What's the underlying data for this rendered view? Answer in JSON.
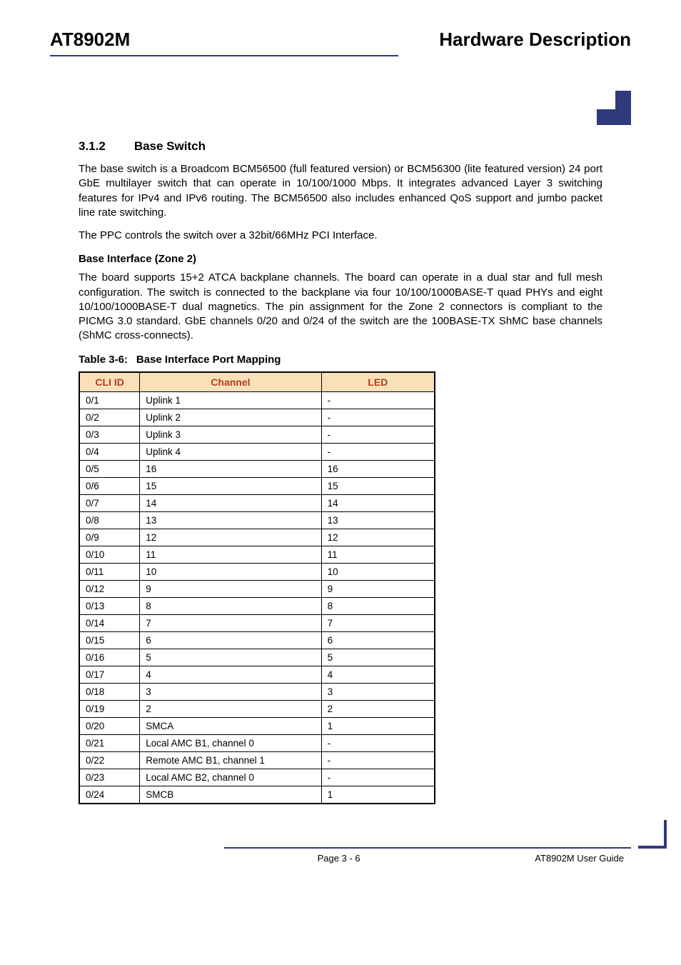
{
  "header": {
    "left": "AT8902M",
    "right": "Hardware Description"
  },
  "logo": {
    "bg_color": "#2e3a7a",
    "accent_color": "#ffffff"
  },
  "section": {
    "number": "3.1.2",
    "title": "Base Switch"
  },
  "paragraphs": {
    "p1": "The base switch is a Broadcom BCM56500 (full featured version) or BCM56300 (lite featured version) 24 port GbE multilayer switch that can operate in 10/100/1000 Mbps. It integrates advanced Layer 3 switching features for IPv4 and IPv6 routing. The BCM56500 also includes enhanced QoS support and jumbo packet line rate switching.",
    "p2": "The PPC controls the switch over a 32bit/66MHz PCI Interface."
  },
  "subsection": {
    "title": "Base Interface (Zone 2)",
    "body": "The board supports 15+2 ATCA backplane channels. The board can operate in a dual star and full mesh configuration. The switch is connected to the backplane via four 10/100/1000BASE-T quad PHYs and eight 10/100/1000BASE-T dual magnetics. The pin assignment for the Zone 2 connectors is compliant to the PICMG 3.0 standard. GbE channels 0/20 and 0/24 of the switch are the 100BASE-TX ShMC base channels (ShMC cross-connects)."
  },
  "table": {
    "caption_label": "Table 3-6:",
    "caption_title": "Base Interface Port Mapping",
    "headers": {
      "col1": "CLI ID",
      "col2": "Channel",
      "col3": "LED"
    },
    "header_bg": "#fae0b8",
    "header_fg": "#b04020",
    "border_color": "#000000",
    "rows": [
      {
        "cli": "0/1",
        "channel": "Uplink 1",
        "led": "-"
      },
      {
        "cli": "0/2",
        "channel": "Uplink 2",
        "led": "-"
      },
      {
        "cli": "0/3",
        "channel": "Uplink 3",
        "led": "-"
      },
      {
        "cli": "0/4",
        "channel": "Uplink 4",
        "led": "-"
      },
      {
        "cli": "0/5",
        "channel": "16",
        "led": "16"
      },
      {
        "cli": "0/6",
        "channel": "15",
        "led": "15"
      },
      {
        "cli": "0/7",
        "channel": "14",
        "led": "14"
      },
      {
        "cli": "0/8",
        "channel": "13",
        "led": "13"
      },
      {
        "cli": "0/9",
        "channel": "12",
        "led": "12"
      },
      {
        "cli": "0/10",
        "channel": "11",
        "led": "11"
      },
      {
        "cli": "0/11",
        "channel": "10",
        "led": "10"
      },
      {
        "cli": "0/12",
        "channel": "9",
        "led": "9"
      },
      {
        "cli": "0/13",
        "channel": "8",
        "led": "8"
      },
      {
        "cli": "0/14",
        "channel": "7",
        "led": "7"
      },
      {
        "cli": "0/15",
        "channel": "6",
        "led": "6"
      },
      {
        "cli": "0/16",
        "channel": "5",
        "led": "5"
      },
      {
        "cli": "0/17",
        "channel": "4",
        "led": "4"
      },
      {
        "cli": "0/18",
        "channel": "3",
        "led": "3"
      },
      {
        "cli": "0/19",
        "channel": "2",
        "led": "2"
      },
      {
        "cli": "0/20",
        "channel": "SMCA",
        "led": "1"
      },
      {
        "cli": "0/21",
        "channel": "Local AMC B1, channel 0",
        "led": "-"
      },
      {
        "cli": "0/22",
        "channel": "Remote AMC B1, channel 1",
        "led": "-"
      },
      {
        "cli": "0/23",
        "channel": "Local AMC B2, channel 0",
        "led": "-"
      },
      {
        "cli": "0/24",
        "channel": "SMCB",
        "led": "1"
      }
    ]
  },
  "footer": {
    "page": "Page 3 - 6",
    "guide": "AT8902M User Guide"
  }
}
